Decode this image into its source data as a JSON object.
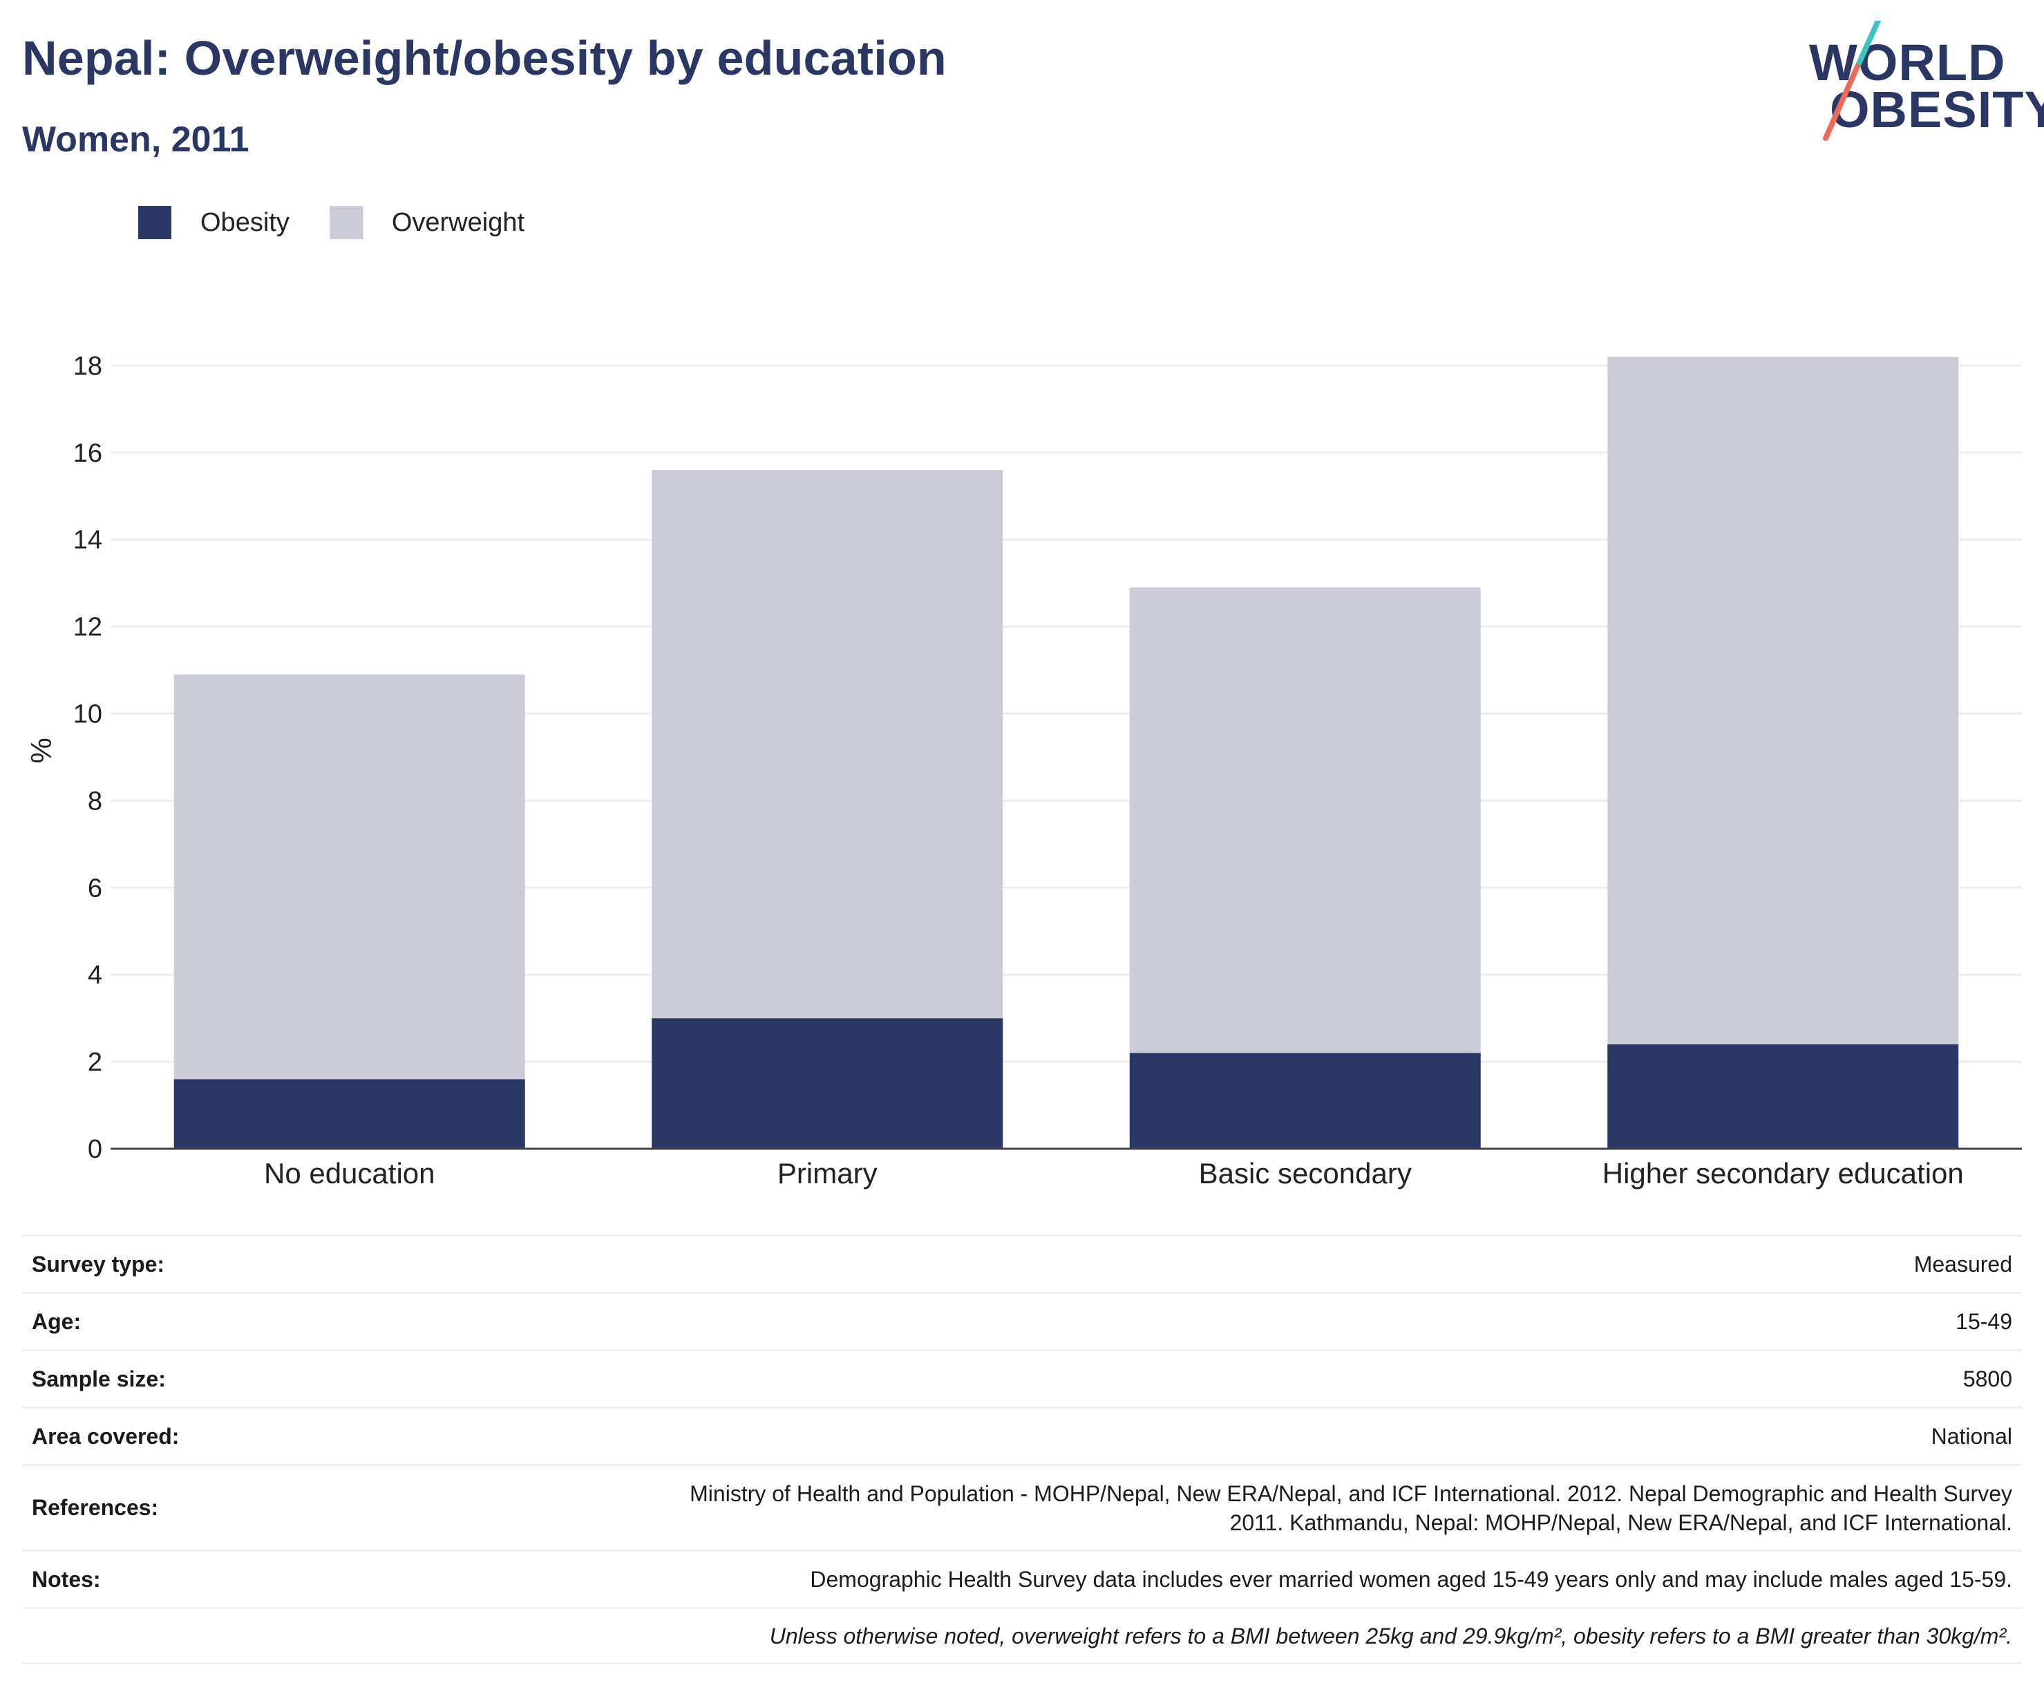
{
  "title": "Nepal: Overweight/obesity by education",
  "subtitle": "Women, 2011",
  "logo": {
    "line1": "WORLD",
    "line2": "OBESITY"
  },
  "legend": [
    {
      "label": "Obesity",
      "color": "#2a3663"
    },
    {
      "label": "Overweight",
      "color": "#cbccd8"
    }
  ],
  "chart_data": {
    "type": "bar",
    "stacked": true,
    "categories": [
      "No education",
      "Primary",
      "Basic secondary",
      "Higher secondary education"
    ],
    "series": [
      {
        "name": "Obesity",
        "color": "#2a3663",
        "values": [
          1.6,
          3.0,
          2.2,
          2.4
        ]
      },
      {
        "name": "Overweight",
        "color": "#cbccd8",
        "values": [
          9.3,
          12.6,
          10.7,
          15.8
        ]
      }
    ],
    "ylabel": "%",
    "ylim": [
      0,
      18.3
    ],
    "yticks": [
      0,
      2,
      4,
      6,
      8,
      10,
      12,
      14,
      16,
      18
    ],
    "grid": true,
    "legend_position": "top-left"
  },
  "meta": {
    "survey_type": {
      "label": "Survey type:",
      "value": "Measured"
    },
    "age": {
      "label": "Age:",
      "value": "15-49"
    },
    "sample_size": {
      "label": "Sample size:",
      "value": "5800"
    },
    "area_covered": {
      "label": "Area covered:",
      "value": "National"
    },
    "references": {
      "label": "References:",
      "value_line1": "Ministry of Health and Population - MOHP/Nepal, New ERA/Nepal, and ICF International. 2012. Nepal Demographic and Health Survey",
      "value_line2": "2011. Kathmandu, Nepal: MOHP/Nepal, New ERA/Nepal, and ICF International."
    },
    "notes": {
      "label": "Notes:",
      "value": "Demographic Health Survey data includes ever married women aged 15-49 years only and may include males aged 15-59."
    },
    "footnote": "Unless otherwise noted, overweight refers to a BMI between 25kg and 29.9kg/m², obesity refers to a BMI greater than 30kg/m²."
  }
}
